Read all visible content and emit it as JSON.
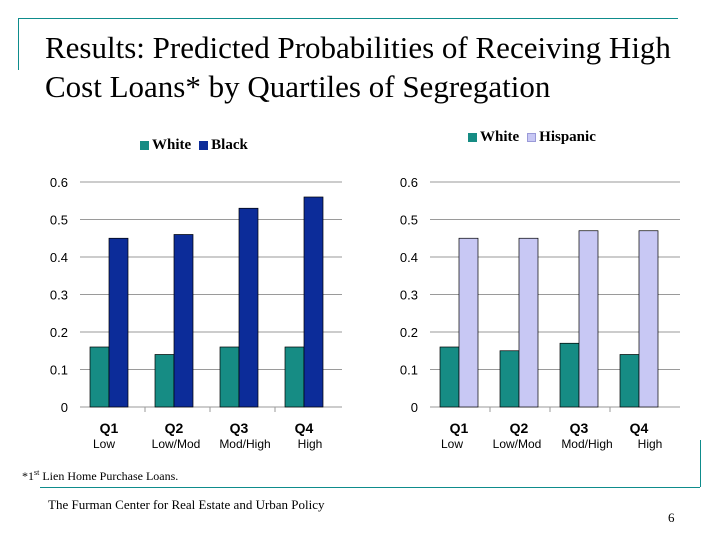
{
  "slide": {
    "title": "Results: Predicted Probabilities of Receiving High Cost Loans* by Quartiles of Segregation",
    "footnote_marker": "*1",
    "footnote_sup": "st",
    "footnote_rest": " Lien Home Purchase Loans.",
    "source": "The Furman Center for Real Estate and Urban Policy",
    "page_number": "6"
  },
  "legend_left": {
    "white": "White",
    "black": "Black"
  },
  "legend_right": {
    "white": "White",
    "hispanic": "Hispanic"
  },
  "colors": {
    "white": "#168c84",
    "black": "#0c2c99",
    "hispanic": "#c8c8f4",
    "grid": "#9a9a9a"
  },
  "chart_data": [
    {
      "type": "bar",
      "title": "",
      "categories": [
        "Q1",
        "Q2",
        "Q3",
        "Q4"
      ],
      "category_sublabels": [
        "Low",
        "Low/Mod",
        "Mod/High",
        "High"
      ],
      "series": [
        {
          "name": "White",
          "values": [
            0.16,
            0.14,
            0.16,
            0.16
          ]
        },
        {
          "name": "Black",
          "values": [
            0.45,
            0.46,
            0.53,
            0.56
          ]
        }
      ],
      "yticks": [
        "0",
        "0.1",
        "0.2",
        "0.3",
        "0.4",
        "0.5",
        "0.6"
      ],
      "ylim": [
        0,
        0.6
      ],
      "grid": true,
      "legend": "top"
    },
    {
      "type": "bar",
      "title": "",
      "categories": [
        "Q1",
        "Q2",
        "Q3",
        "Q4"
      ],
      "category_sublabels": [
        "Low",
        "Low/Mod",
        "Mod/High",
        "High"
      ],
      "series": [
        {
          "name": "White",
          "values": [
            0.16,
            0.15,
            0.17,
            0.14
          ]
        },
        {
          "name": "Hispanic",
          "values": [
            0.45,
            0.45,
            0.47,
            0.47
          ]
        }
      ],
      "yticks": [
        "0",
        "0.1",
        "0.2",
        "0.3",
        "0.4",
        "0.5",
        "0.6"
      ],
      "ylim": [
        0,
        0.6
      ],
      "grid": true,
      "legend": "top"
    }
  ]
}
